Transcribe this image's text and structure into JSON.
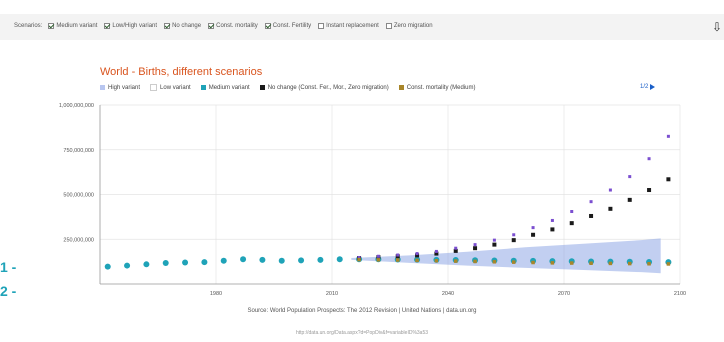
{
  "scenarios": {
    "label": "Scenarios:",
    "options": [
      {
        "label": "Medium variant",
        "checked": true
      },
      {
        "label": "Low/High variant",
        "checked": true
      },
      {
        "label": "No change",
        "checked": true
      },
      {
        "label": "Const. mortality",
        "checked": true
      },
      {
        "label": "Const. Fertility",
        "checked": true
      },
      {
        "label": "Instant replacement",
        "checked": false
      },
      {
        "label": "Zero migration",
        "checked": false
      }
    ]
  },
  "download_icon": "download-icon",
  "pager": {
    "text": "1/2"
  },
  "source": "Source: World Population Prospects: The 2012 Revision | United Nations | data.un.org",
  "url": "http://data.un.org/Data.aspx?d=PopDiv&f=variableID%3a53",
  "edge_marks": [
    "1 -",
    "2 -"
  ],
  "colors": {
    "title": "#d9541e",
    "high_variant": "#b8c6f0",
    "medium_variant": "#1fa3b8",
    "no_change": "#1a1a1a",
    "const_mortality": "#a8862a",
    "const_fertility": "#7b4fd0",
    "band": "#8fa8e6"
  },
  "chart_data": {
    "type": "scatter",
    "title": "World - Births, different scenarios",
    "xlabel": "",
    "ylabel": "",
    "xlim": [
      1950,
      2100
    ],
    "ylim": [
      0,
      1000000000
    ],
    "x_ticks": [
      "1980",
      "2010",
      "2040",
      "2070",
      "2100"
    ],
    "y_ticks": [
      "250,000,000",
      "500,000,000",
      "750,000,000",
      "1,000,000,000"
    ],
    "grid": true,
    "legend": "top",
    "legend_entries": [
      {
        "name": "High variant",
        "color": "#b8c6f0"
      },
      {
        "name": "Low variant",
        "color": "#ffffff"
      },
      {
        "name": "Medium variant",
        "color": "#1fa3b8"
      },
      {
        "name": "No change (Const. Fer., Mor., Zero migration)",
        "color": "#1a1a1a"
      },
      {
        "name": "Const. mortality (Medium)",
        "color": "#a8862a"
      }
    ],
    "band": {
      "name": "Low/High variant range",
      "x": [
        2015,
        2030,
        2045,
        2060,
        2075,
        2090,
        2095
      ],
      "high": [
        145000000,
        160000000,
        180000000,
        205000000,
        225000000,
        245000000,
        255000000
      ],
      "low": [
        135000000,
        118000000,
        103000000,
        90000000,
        78000000,
        66000000,
        60000000
      ]
    },
    "series": [
      {
        "name": "Medium variant",
        "x": [
          1952,
          1957,
          1962,
          1967,
          1972,
          1977,
          1982,
          1987,
          1992,
          1997,
          2002,
          2007,
          2012,
          2017,
          2022,
          2027,
          2032,
          2037,
          2042,
          2047,
          2052,
          2057,
          2062,
          2067,
          2072,
          2077,
          2082,
          2087,
          2092,
          2097
        ],
        "values": [
          97000000,
          103000000,
          110000000,
          117000000,
          120000000,
          122000000,
          130000000,
          138000000,
          135000000,
          130000000,
          132000000,
          135000000,
          138000000,
          138000000,
          138000000,
          137000000,
          136000000,
          135000000,
          134000000,
          133000000,
          131000000,
          130000000,
          129000000,
          128000000,
          127000000,
          126000000,
          125000000,
          124000000,
          123000000,
          122000000
        ]
      },
      {
        "name": "No change",
        "x": [
          2017,
          2022,
          2027,
          2032,
          2037,
          2042,
          2047,
          2052,
          2057,
          2062,
          2067,
          2072,
          2077,
          2082,
          2087,
          2092,
          2097
        ],
        "values": [
          145000000,
          150000000,
          155000000,
          160000000,
          170000000,
          185000000,
          200000000,
          220000000,
          245000000,
          275000000,
          305000000,
          340000000,
          380000000,
          420000000,
          470000000,
          525000000,
          585000000
        ]
      },
      {
        "name": "Const. fertility",
        "x": [
          2017,
          2022,
          2027,
          2032,
          2037,
          2042,
          2047,
          2052,
          2057,
          2062,
          2067,
          2072,
          2077,
          2082,
          2087,
          2092,
          2097
        ],
        "values": [
          148000000,
          155000000,
          162000000,
          170000000,
          182000000,
          200000000,
          220000000,
          245000000,
          275000000,
          315000000,
          355000000,
          405000000,
          460000000,
          525000000,
          600000000,
          700000000,
          825000000
        ]
      },
      {
        "name": "Const. mortality (Medium)",
        "x": [
          2017,
          2022,
          2027,
          2032,
          2037,
          2042,
          2047,
          2052,
          2057,
          2062,
          2067,
          2072,
          2077,
          2082,
          2087,
          2092,
          2097
        ],
        "values": [
          136000000,
          135000000,
          134000000,
          132000000,
          130000000,
          128000000,
          126000000,
          124000000,
          122000000,
          120000000,
          118000000,
          117000000,
          116000000,
          115000000,
          114000000,
          113000000,
          112000000
        ]
      }
    ]
  }
}
